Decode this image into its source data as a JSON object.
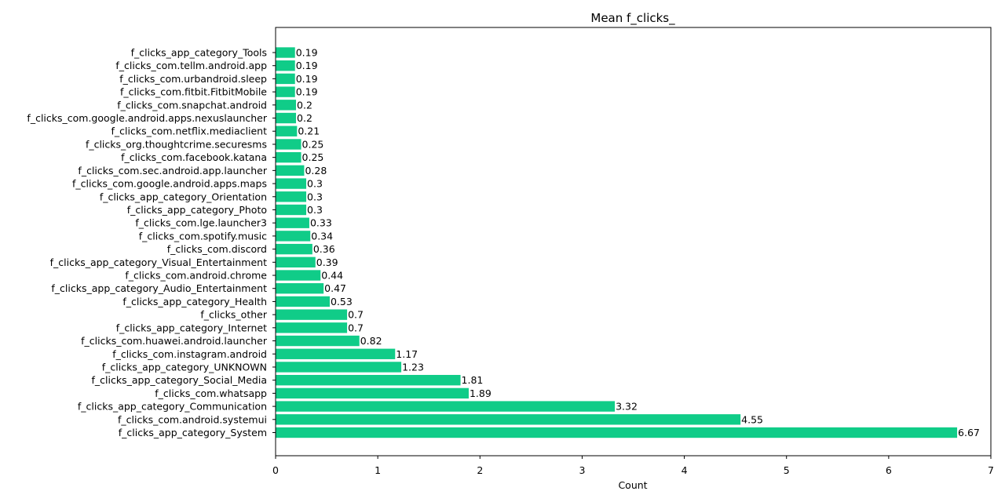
{
  "chart_data": {
    "type": "bar",
    "orientation": "horizontal",
    "title": "Mean f_clicks_",
    "xlabel": "Count",
    "ylabel": "",
    "xlim": [
      0,
      7
    ],
    "xticks": [
      0,
      1,
      2,
      3,
      4,
      5,
      6,
      7
    ],
    "grid": false,
    "bar_color": "#10cc88",
    "categories": [
      "f_clicks_app_category_System",
      "f_clicks_com.android.systemui",
      "f_clicks_app_category_Communication",
      "f_clicks_com.whatsapp",
      "f_clicks_app_category_Social_Media",
      "f_clicks_app_category_UNKNOWN",
      "f_clicks_com.instagram.android",
      "f_clicks_com.huawei.android.launcher",
      "f_clicks_app_category_Internet",
      "f_clicks_other",
      "f_clicks_app_category_Health",
      "f_clicks_app_category_Audio_Entertainment",
      "f_clicks_com.android.chrome",
      "f_clicks_app_category_Visual_Entertainment",
      "f_clicks_com.discord",
      "f_clicks_com.spotify.music",
      "f_clicks_com.lge.launcher3",
      "f_clicks_app_category_Photo",
      "f_clicks_app_category_Orientation",
      "f_clicks_com.google.android.apps.maps",
      "f_clicks_com.sec.android.app.launcher",
      "f_clicks_com.facebook.katana",
      "f_clicks_org.thoughtcrime.securesms",
      "f_clicks_com.netflix.mediaclient",
      "f_clicks_com.google.android.apps.nexuslauncher",
      "f_clicks_com.snapchat.android",
      "f_clicks_com.fitbit.FitbitMobile",
      "f_clicks_com.urbandroid.sleep",
      "f_clicks_com.tellm.android.app",
      "f_clicks_app_category_Tools"
    ],
    "values": [
      6.67,
      4.55,
      3.32,
      1.89,
      1.81,
      1.23,
      1.17,
      0.82,
      0.7,
      0.7,
      0.53,
      0.47,
      0.44,
      0.39,
      0.36,
      0.34,
      0.33,
      0.3,
      0.3,
      0.3,
      0.28,
      0.25,
      0.25,
      0.21,
      0.2,
      0.2,
      0.19,
      0.19,
      0.19,
      0.19
    ],
    "value_labels": [
      "6.67",
      "4.55",
      "3.32",
      "1.89",
      "1.81",
      "1.23",
      "1.17",
      "0.82",
      "0.7",
      "0.7",
      "0.53",
      "0.47",
      "0.44",
      "0.39",
      "0.36",
      "0.34",
      "0.33",
      "0.3",
      "0.3",
      "0.3",
      "0.28",
      "0.25",
      "0.25",
      "0.21",
      "0.2",
      "0.2",
      "0.19",
      "0.19",
      "0.19",
      "0.19"
    ]
  }
}
